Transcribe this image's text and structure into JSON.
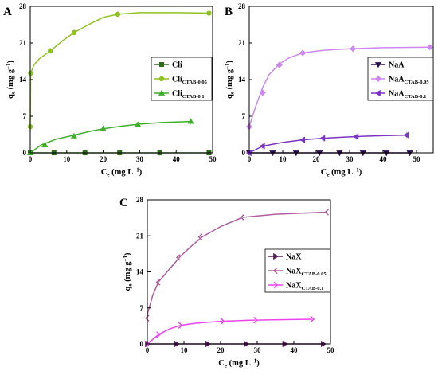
{
  "chart_data": [
    {
      "type": "line",
      "panel_label": "A",
      "xlim": [
        0,
        50
      ],
      "ylim": [
        0,
        28
      ],
      "xticks": [
        0,
        10,
        20,
        30,
        40,
        50
      ],
      "yticks": [
        0,
        7,
        14,
        21,
        28
      ],
      "xlabel": {
        "main": "C",
        "sub": "e",
        "unit": " (mg L",
        "sup": "−1",
        "close": ")"
      },
      "ylabel": {
        "main": "q",
        "sub": "e",
        "unit": " (mg g",
        "sup": "−1",
        "close": ")"
      },
      "legend_position": "lower-right",
      "series": [
        {
          "name": "Cli",
          "name_main": "Cli",
          "name_sub": "",
          "color": "#2e6b1f",
          "marker": "square",
          "x": [
            0,
            6,
            13,
            19,
            25,
            30,
            36,
            42,
            49
          ],
          "y": [
            0,
            0,
            0,
            0,
            0,
            0,
            0,
            0,
            0
          ],
          "markers_x": [
            0,
            6.5,
            15,
            24.5,
            35.5,
            49
          ]
        },
        {
          "name": "Cli CTAB-0.05",
          "name_main": "Cli",
          "name_sub": "CTAB-0.05",
          "color": "#8dc21f",
          "marker": "circle",
          "x": [
            0,
            0.1,
            1,
            2.5,
            5.5,
            9,
            12,
            16,
            20,
            24,
            30,
            40,
            49
          ],
          "y": [
            5,
            15.2,
            16.8,
            18,
            19.5,
            21.5,
            23,
            24.5,
            25.9,
            26.5,
            26.8,
            26.8,
            26.7
          ],
          "markers_x": [
            0,
            0.1,
            5.5,
            12,
            24,
            49
          ],
          "markers_y": [
            5,
            15.2,
            19.5,
            23,
            26.5,
            26.7
          ]
        },
        {
          "name": "Cli CTAB-0.1",
          "name_main": "Cli",
          "name_sub": "CTAB-0.1",
          "color": "#3fae2a",
          "marker": "triangle",
          "x": [
            0,
            3,
            7,
            12,
            17,
            20,
            25,
            30,
            36,
            44
          ],
          "y": [
            0,
            1.5,
            2.6,
            3.4,
            4.2,
            4.6,
            5.1,
            5.5,
            5.8,
            6.0
          ],
          "markers_x": [
            0,
            4,
            12,
            20,
            29.5,
            44
          ],
          "markers_y": [
            0,
            1.5,
            3.2,
            4.6,
            5.4,
            6.0
          ]
        }
      ]
    },
    {
      "type": "line",
      "panel_label": "B",
      "xlim": [
        0,
        55
      ],
      "ylim": [
        0,
        28
      ],
      "xticks": [
        0,
        10,
        20,
        30,
        40,
        50
      ],
      "yticks": [
        0,
        7,
        14,
        21,
        28
      ],
      "xlabel": {
        "main": "C",
        "sub": "e",
        "unit": " (mg L",
        "sup": "−1",
        "close": ")"
      },
      "ylabel": {
        "main": "q",
        "sub": "e",
        "unit": " (mg g",
        "sup": "−1",
        "close": ")"
      },
      "legend_position": "lower-right",
      "series": [
        {
          "name": "NaA",
          "name_main": "NaA",
          "name_sub": "",
          "color": "#2b0f4a",
          "marker": "triangle-down",
          "x": [
            0,
            7,
            14,
            21,
            27,
            34,
            41,
            48
          ],
          "y": [
            0,
            0,
            0,
            0,
            0,
            0,
            0,
            0
          ],
          "markers_x": [
            0,
            7,
            14,
            21,
            27,
            34,
            41,
            48
          ]
        },
        {
          "name": "NaA CTAB-0.05",
          "name_main": "NaA",
          "name_sub": "CTAB-0.05",
          "color": "#cc88ee",
          "marker": "diamond",
          "x": [
            0,
            0.1,
            2,
            4,
            6,
            9,
            12,
            16,
            22,
            30,
            40,
            54
          ],
          "y": [
            5,
            5.2,
            9,
            12.5,
            15,
            17,
            18.2,
            19.1,
            19.6,
            19.9,
            20.1,
            20.2
          ],
          "markers_x": [
            0,
            4,
            9,
            16,
            31,
            54
          ],
          "markers_y": [
            5,
            11.5,
            16.8,
            19.1,
            19.9,
            20.2
          ]
        },
        {
          "name": "NaA CTAB-0.1",
          "name_main": "NaA",
          "name_sub": "CTAB-0.1",
          "color": "#7a35c2",
          "marker": "triangle-left",
          "x": [
            0,
            4,
            10,
            16,
            22,
            28,
            35,
            41,
            47
          ],
          "y": [
            0,
            1.3,
            2.0,
            2.5,
            2.8,
            3.0,
            3.2,
            3.3,
            3.4
          ],
          "markers_x": [
            0,
            4,
            16,
            22,
            32,
            47
          ],
          "markers_y": [
            0,
            1.3,
            2.5,
            2.8,
            3.1,
            3.4
          ]
        }
      ]
    },
    {
      "type": "line",
      "panel_label": "C",
      "xlim": [
        0,
        50
      ],
      "ylim": [
        0,
        28
      ],
      "xticks": [
        0,
        10,
        20,
        30,
        40,
        50
      ],
      "yticks": [
        0,
        7,
        14,
        21,
        28
      ],
      "xlabel": {
        "main": "C",
        "sub": "e",
        "unit": " (mg L",
        "sup": "−1",
        "close": ")"
      },
      "ylabel": {
        "main": "q",
        "sub": "e",
        "unit": " (mg g",
        "sup": "−1",
        "close": ")"
      },
      "legend_position": "right",
      "series": [
        {
          "name": "NaX",
          "name_main": "NaX",
          "name_sub": "",
          "color": "#5a1f5a",
          "marker": "triangle-right",
          "x": [
            0,
            9,
            18,
            27,
            37,
            48
          ],
          "y": [
            0,
            0,
            0,
            0,
            0,
            0
          ],
          "markers_x": [
            0,
            8,
            16.5,
            27,
            37.5,
            48
          ]
        },
        {
          "name": "NaX CTAB-0.05",
          "name_main": "NaX",
          "name_sub": "CTAB-0.05",
          "color": "#b05e9d",
          "marker": "chevron-left",
          "x": [
            0,
            0.1,
            1.5,
            3,
            6,
            9,
            12,
            15,
            20,
            26,
            35,
            49
          ],
          "y": [
            5,
            6,
            9.5,
            12,
            14.5,
            17,
            19,
            20.8,
            22.8,
            24.6,
            25.2,
            25.6
          ],
          "markers_x": [
            0,
            3,
            8.5,
            14.5,
            26,
            49
          ],
          "markers_y": [
            5,
            12,
            16.8,
            20.8,
            24.6,
            25.6
          ]
        },
        {
          "name": "NaX CTAB-0.1",
          "name_main": "NaX",
          "name_sub": "CTAB-0.1",
          "color": "#ee44ee",
          "marker": "chevron-right",
          "x": [
            0,
            3,
            6,
            9,
            13,
            20,
            28,
            36,
            45
          ],
          "y": [
            0,
            1.8,
            2.9,
            3.6,
            4.0,
            4.4,
            4.6,
            4.7,
            4.8
          ],
          "markers_x": [
            0,
            3,
            9,
            20.5,
            29.5,
            45
          ],
          "markers_y": [
            0,
            1.8,
            3.6,
            4.4,
            4.6,
            4.8
          ]
        }
      ]
    }
  ]
}
